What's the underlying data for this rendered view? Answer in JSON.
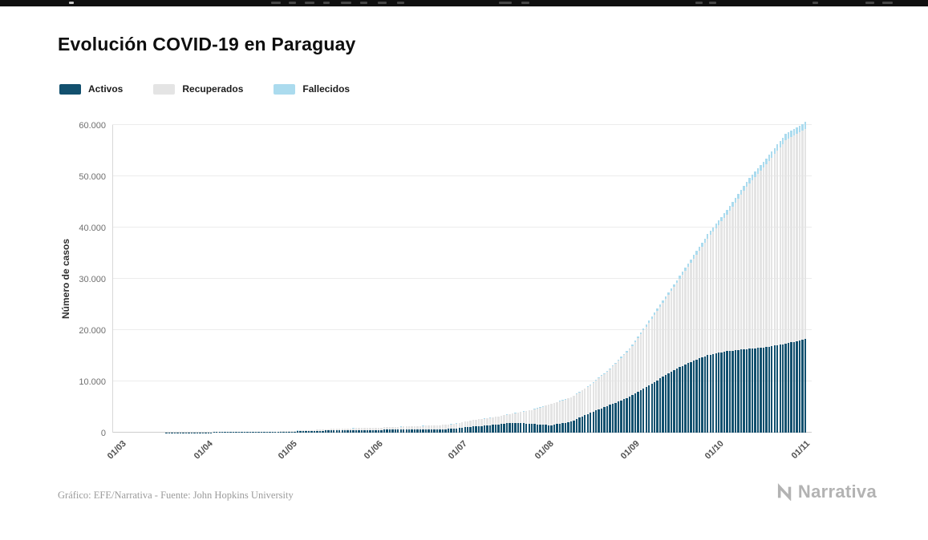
{
  "page": {
    "title": "Evolución COVID-19 en Paraguay",
    "footer_credit": "Gráfico: EFE/Narrativa - Fuente: John Hopkins University",
    "brand": "Narrativa"
  },
  "legend": [
    {
      "label": "Activos",
      "color": "#12506e"
    },
    {
      "label": "Recuperados",
      "color": "#e4e4e4"
    },
    {
      "label": "Fallecidos",
      "color": "#abdbee"
    }
  ],
  "chart_data": {
    "type": "bar",
    "stacked": true,
    "title": "Evolución COVID-19 en Paraguay",
    "xlabel": "",
    "ylabel": "Número de casos",
    "ylim": [
      0,
      60000
    ],
    "grid": "horizontal",
    "legend_position": "top-left",
    "series_order": [
      "activos",
      "recuperados",
      "fallecidos"
    ],
    "colors": {
      "activos": "#12506e",
      "recuperados": "#e4e4e4",
      "fallecidos": "#abdbee"
    },
    "yticks": [
      {
        "value": 0,
        "label": "0"
      },
      {
        "value": 10000,
        "label": "10.000"
      },
      {
        "value": 20000,
        "label": "20.000"
      },
      {
        "value": 30000,
        "label": "30.000"
      },
      {
        "value": 40000,
        "label": "40.000"
      },
      {
        "value": 50000,
        "label": "50.000"
      },
      {
        "value": 60000,
        "label": "60.000"
      }
    ],
    "xticks": [
      {
        "day": 0,
        "label": "01/03"
      },
      {
        "day": 31,
        "label": "01/04"
      },
      {
        "day": 61,
        "label": "01/05"
      },
      {
        "day": 92,
        "label": "01/06"
      },
      {
        "day": 122,
        "label": "01/07"
      },
      {
        "day": 153,
        "label": "01/08"
      },
      {
        "day": 184,
        "label": "01/09"
      },
      {
        "day": 214,
        "label": "01/10"
      },
      {
        "day": 245,
        "label": "01/11"
      }
    ],
    "points": [
      {
        "date": "01/03",
        "day": 0,
        "activos": 1,
        "recuperados": 0,
        "fallecidos": 0
      },
      {
        "date": "08/03",
        "day": 7,
        "activos": 6,
        "recuperados": 0,
        "fallecidos": 0
      },
      {
        "date": "15/03",
        "day": 14,
        "activos": 9,
        "recuperados": 0,
        "fallecidos": 0
      },
      {
        "date": "22/03",
        "day": 21,
        "activos": 21,
        "recuperados": 0,
        "fallecidos": 1
      },
      {
        "date": "29/03",
        "day": 28,
        "activos": 60,
        "recuperados": 2,
        "fallecidos": 3
      },
      {
        "date": "05/04",
        "day": 35,
        "activos": 92,
        "recuperados": 8,
        "fallecidos": 4
      },
      {
        "date": "12/04",
        "day": 42,
        "activos": 106,
        "recuperados": 22,
        "fallecidos": 6
      },
      {
        "date": "19/04",
        "day": 49,
        "activos": 154,
        "recuperados": 44,
        "fallecidos": 8
      },
      {
        "date": "26/04",
        "day": 56,
        "activos": 122,
        "recuperados": 97,
        "fallecidos": 9
      },
      {
        "date": "03/05",
        "day": 63,
        "activos": 240,
        "recuperados": 146,
        "fallecidos": 10
      },
      {
        "date": "10/05",
        "day": 70,
        "activos": 345,
        "recuperados": 207,
        "fallecidos": 11
      },
      {
        "date": "17/05",
        "day": 77,
        "activos": 480,
        "recuperados": 295,
        "fallecidos": 11
      },
      {
        "date": "24/05",
        "day": 84,
        "activos": 510,
        "recuperados": 363,
        "fallecidos": 11
      },
      {
        "date": "31/05",
        "day": 91,
        "activos": 520,
        "recuperados": 433,
        "fallecidos": 11
      },
      {
        "date": "07/06",
        "day": 98,
        "activos": 590,
        "recuperados": 534,
        "fallecidos": 11
      },
      {
        "date": "14/06",
        "day": 105,
        "activos": 630,
        "recuperados": 653,
        "fallecidos": 13
      },
      {
        "date": "21/06",
        "day": 112,
        "activos": 600,
        "recuperados": 779,
        "fallecidos": 13
      },
      {
        "date": "28/06",
        "day": 119,
        "activos": 780,
        "recuperados": 905,
        "fallecidos": 15
      },
      {
        "date": "05/07",
        "day": 126,
        "activos": 1200,
        "recuperados": 1236,
        "fallecidos": 20
      },
      {
        "date": "12/07",
        "day": 133,
        "activos": 1500,
        "recuperados": 1455,
        "fallecidos": 25
      },
      {
        "date": "19/07",
        "day": 140,
        "activos": 1950,
        "recuperados": 1767,
        "fallecidos": 31
      },
      {
        "date": "26/07",
        "day": 147,
        "activos": 1700,
        "recuperados": 2701,
        "fallecidos": 43
      },
      {
        "date": "02/08",
        "day": 154,
        "activos": 1450,
        "recuperados": 4139,
        "fallecidos": 55
      },
      {
        "date": "09/08",
        "day": 161,
        "activos": 2150,
        "recuperados": 4687,
        "fallecidos": 70
      },
      {
        "date": "16/08",
        "day": 168,
        "activos": 3900,
        "recuperados": 5361,
        "fallecidos": 120
      },
      {
        "date": "23/08",
        "day": 175,
        "activos": 5400,
        "recuperados": 6956,
        "fallecidos": 180
      },
      {
        "date": "30/08",
        "day": 182,
        "activos": 7000,
        "recuperados": 9194,
        "fallecidos": 280
      },
      {
        "date": "06/09",
        "day": 189,
        "activos": 9200,
        "recuperados": 12251,
        "fallecidos": 420
      },
      {
        "date": "13/09",
        "day": 196,
        "activos": 11600,
        "recuperados": 15204,
        "fallecidos": 520
      },
      {
        "date": "20/09",
        "day": 203,
        "activos": 13600,
        "recuperados": 18765,
        "fallecidos": 650
      },
      {
        "date": "27/09",
        "day": 210,
        "activos": 15100,
        "recuperados": 22774,
        "fallecidos": 810
      },
      {
        "date": "04/10",
        "day": 217,
        "activos": 15900,
        "recuperados": 26632,
        "fallecidos": 920
      },
      {
        "date": "11/10",
        "day": 224,
        "activos": 16300,
        "recuperados": 31608,
        "fallecidos": 1070
      },
      {
        "date": "18/10",
        "day": 231,
        "activos": 16700,
        "recuperados": 35602,
        "fallecidos": 1180
      },
      {
        "date": "25/10",
        "day": 238,
        "activos": 17300,
        "recuperados": 39679,
        "fallecidos": 1280
      },
      {
        "date": "01/11",
        "day": 245,
        "activos": 18300,
        "recuperados": 40892,
        "fallecidos": 1365
      }
    ]
  }
}
